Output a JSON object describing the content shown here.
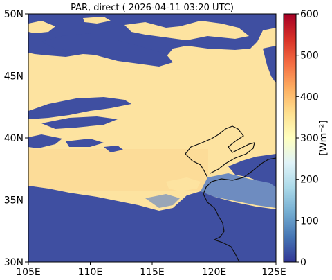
{
  "title": "PAR, direct ( 2026-04-11 03:20 UTC)",
  "map": {
    "lon_range": [
      105,
      125
    ],
    "lat_range": [
      30,
      50
    ],
    "lon_ticks": [
      "105E",
      "110E",
      "115E",
      "120E",
      "125E"
    ],
    "lat_ticks": [
      "50N",
      "45N",
      "40N",
      "35N",
      "30N"
    ],
    "field_colors": {
      "high": "#fde3a0",
      "high_alt": "#fbd793",
      "low": "#3f4fa1",
      "mid": "#6e8cc0",
      "coast": "#111111"
    }
  },
  "colorbar": {
    "range": [
      0,
      600
    ],
    "ticks": [
      "600",
      "500",
      "400",
      "300",
      "200",
      "100",
      "0"
    ],
    "unit_label": "[Wm⁻²]",
    "colors": [
      "#313695",
      "#4575b4",
      "#74add1",
      "#abd9e9",
      "#e0f3f8",
      "#ffffbf",
      "#fee090",
      "#fdae61",
      "#f46d43",
      "#d73027",
      "#a50026"
    ]
  }
}
